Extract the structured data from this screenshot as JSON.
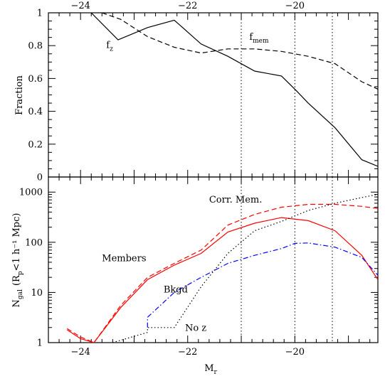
{
  "chart_data": [
    {
      "type": "line",
      "panel": "top",
      "xlabel": "",
      "ylabel": "Fraction",
      "xlim": [
        -24.6,
        -18.45
      ],
      "ylim": [
        0,
        1
      ],
      "x_reversed": false,
      "x_ticks": [
        -24,
        -22,
        -20
      ],
      "x_tick_labels": [
        "−24",
        "−22",
        "−20"
      ],
      "y_ticks": [
        0,
        0.2,
        0.4,
        0.6,
        0.8,
        1
      ],
      "y_tick_labels": [
        "0",
        "0.2",
        "0.4",
        "0.6",
        "0.8",
        "1"
      ],
      "vlines": [
        -21.0,
        -20.0,
        -19.3
      ],
      "series": [
        {
          "key": "fz",
          "style": "solid",
          "color": "#000000",
          "x": [
            -23.8,
            -23.3,
            -22.75,
            -22.25,
            -21.75,
            -21.25,
            -20.75,
            -20.25,
            -20.0,
            -19.75,
            -19.25,
            -18.75,
            -18.45
          ],
          "y": [
            1.0,
            0.835,
            0.91,
            0.955,
            0.81,
            0.735,
            0.645,
            0.615,
            0.535,
            0.45,
            0.3,
            0.105,
            0.065
          ]
        },
        {
          "key": "fmem",
          "style": "dashed",
          "color": "#000000",
          "x": [
            -23.6,
            -23.25,
            -22.75,
            -22.25,
            -21.75,
            -21.25,
            -20.75,
            -20.25,
            -19.75,
            -19.25,
            -18.75,
            -18.45
          ],
          "y": [
            1.0,
            0.96,
            0.855,
            0.79,
            0.755,
            0.78,
            0.78,
            0.765,
            0.735,
            0.69,
            0.58,
            0.535
          ]
        }
      ],
      "annotations": [
        {
          "key": "fz",
          "text": "f",
          "sub": "z",
          "x": -23.52,
          "y": 0.785
        },
        {
          "key": "fmem",
          "text": "f",
          "sub": "mem",
          "x": -20.85,
          "y": 0.835
        }
      ]
    },
    {
      "type": "line",
      "panel": "bottom",
      "xlabel": "M",
      "xlabel_sub": "r",
      "ylabel": "N",
      "ylabel_sub": "gal",
      "ylabel_rest": "(R",
      "ylabel_sub2": "p",
      "ylabel_tail": "<1 h⁻¹ Mpc)",
      "xlim": [
        -24.6,
        -18.45
      ],
      "ylim": [
        1,
        2000
      ],
      "yscale": "log",
      "x_ticks": [
        -24,
        -22,
        -20
      ],
      "x_tick_labels": [
        "−24",
        "−22",
        "−20"
      ],
      "y_ticks": [
        1,
        10,
        100,
        1000
      ],
      "y_tick_labels": [
        "1",
        "10",
        "100",
        "1000"
      ],
      "vlines": [
        -21.0,
        -20.0,
        -19.3
      ],
      "series": [
        {
          "key": "members",
          "name": "Members",
          "style": "solid",
          "color": "#ff0000",
          "x": [
            -24.25,
            -24.0,
            -23.75,
            -23.25,
            -22.75,
            -22.25,
            -21.75,
            -21.25,
            -20.75,
            -20.25,
            -19.75,
            -19.25,
            -18.75,
            -18.45
          ],
          "y": [
            1.8,
            1.2,
            1.0,
            5.0,
            18.0,
            35.0,
            60.0,
            160.0,
            240.0,
            310.0,
            270.0,
            170.0,
            55.0,
            18.0
          ]
        },
        {
          "key": "corr_mem",
          "name": "Corr. Mem.",
          "style": "dashed",
          "color": "#ff0000",
          "x": [
            -24.25,
            -24.0,
            -23.75,
            -23.25,
            -22.75,
            -22.25,
            -21.75,
            -21.25,
            -20.75,
            -20.25,
            -19.75,
            -19.25,
            -18.75,
            -18.45
          ],
          "y": [
            1.9,
            1.3,
            1.0,
            5.5,
            20.0,
            38.0,
            70.0,
            220.0,
            360.0,
            500.0,
            570.0,
            570.0,
            520.0,
            470.0
          ]
        },
        {
          "key": "bkgd",
          "name": "Bkgd",
          "style": "dashdot",
          "color": "#0000ff",
          "x": [
            -22.75,
            -22.75,
            -22.25,
            -21.75,
            -21.25,
            -20.75,
            -20.25,
            -20.0,
            -19.75,
            -19.25,
            -18.75,
            -18.45
          ],
          "y": [
            2.0,
            3.2,
            10.0,
            20.0,
            38.0,
            55.0,
            75.0,
            95.0,
            97.0,
            80.0,
            50.0,
            22.0
          ]
        },
        {
          "key": "noz",
          "name": "No z",
          "style": "dotted",
          "color": "#000000",
          "x": [
            -23.4,
            -22.75,
            -22.75,
            -22.25,
            -21.75,
            -21.25,
            -20.75,
            -20.25,
            -19.75,
            -19.25,
            -18.75,
            -18.45
          ],
          "y": [
            1.0,
            1.6,
            2.0,
            2.0,
            13.0,
            60.0,
            170.0,
            260.0,
            430.0,
            600.0,
            780.0,
            900.0
          ]
        }
      ],
      "annotations": [
        {
          "key": "corr_mem",
          "text": "Corr. Mem.",
          "x": -21.6,
          "y": 620
        },
        {
          "key": "members",
          "text": "Members",
          "x": -23.6,
          "y": 42
        },
        {
          "key": "bkgd",
          "text": "Bkgd",
          "x": -22.45,
          "y": 10
        },
        {
          "key": "noz",
          "text": "No z",
          "x": -22.05,
          "y": 1.7
        }
      ]
    }
  ]
}
